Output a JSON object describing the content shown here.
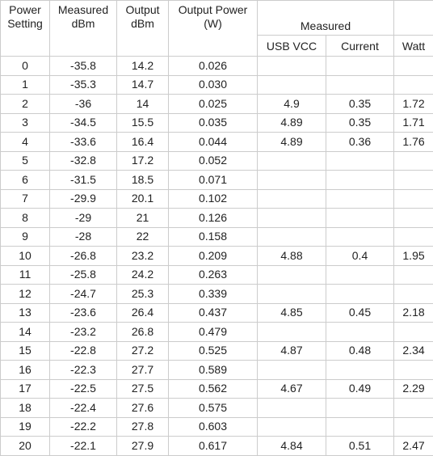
{
  "headers": {
    "power_setting": [
      "Power",
      "Setting"
    ],
    "measured_dbm": [
      "Measured",
      "dBm"
    ],
    "output_dbm": [
      "Output",
      "dBm"
    ],
    "output_power": [
      "Output Power",
      "(W)"
    ],
    "measured_group": "Measured",
    "usb_vcc": "USB VCC",
    "current": "Current",
    "watt": "Watt"
  },
  "rows": [
    {
      "setting": "0",
      "measured_dbm": "-35.8",
      "output_dbm": "14.2",
      "output_w": "0.026",
      "usb_vcc": "",
      "current": "",
      "watt": ""
    },
    {
      "setting": "1",
      "measured_dbm": "-35.3",
      "output_dbm": "14.7",
      "output_w": "0.030",
      "usb_vcc": "",
      "current": "",
      "watt": ""
    },
    {
      "setting": "2",
      "measured_dbm": "-36",
      "output_dbm": "14",
      "output_w": "0.025",
      "usb_vcc": "4.9",
      "current": "0.35",
      "watt": "1.72"
    },
    {
      "setting": "3",
      "measured_dbm": "-34.5",
      "output_dbm": "15.5",
      "output_w": "0.035",
      "usb_vcc": "4.89",
      "current": "0.35",
      "watt": "1.71"
    },
    {
      "setting": "4",
      "measured_dbm": "-33.6",
      "output_dbm": "16.4",
      "output_w": "0.044",
      "usb_vcc": "4.89",
      "current": "0.36",
      "watt": "1.76"
    },
    {
      "setting": "5",
      "measured_dbm": "-32.8",
      "output_dbm": "17.2",
      "output_w": "0.052",
      "usb_vcc": "",
      "current": "",
      "watt": ""
    },
    {
      "setting": "6",
      "measured_dbm": "-31.5",
      "output_dbm": "18.5",
      "output_w": "0.071",
      "usb_vcc": "",
      "current": "",
      "watt": ""
    },
    {
      "setting": "7",
      "measured_dbm": "-29.9",
      "output_dbm": "20.1",
      "output_w": "0.102",
      "usb_vcc": "",
      "current": "",
      "watt": ""
    },
    {
      "setting": "8",
      "measured_dbm": "-29",
      "output_dbm": "21",
      "output_w": "0.126",
      "usb_vcc": "",
      "current": "",
      "watt": ""
    },
    {
      "setting": "9",
      "measured_dbm": "-28",
      "output_dbm": "22",
      "output_w": "0.158",
      "usb_vcc": "",
      "current": "",
      "watt": ""
    },
    {
      "setting": "10",
      "measured_dbm": "-26.8",
      "output_dbm": "23.2",
      "output_w": "0.209",
      "usb_vcc": "4.88",
      "current": "0.4",
      "watt": "1.95"
    },
    {
      "setting": "11",
      "measured_dbm": "-25.8",
      "output_dbm": "24.2",
      "output_w": "0.263",
      "usb_vcc": "",
      "current": "",
      "watt": ""
    },
    {
      "setting": "12",
      "measured_dbm": "-24.7",
      "output_dbm": "25.3",
      "output_w": "0.339",
      "usb_vcc": "",
      "current": "",
      "watt": ""
    },
    {
      "setting": "13",
      "measured_dbm": "-23.6",
      "output_dbm": "26.4",
      "output_w": "0.437",
      "usb_vcc": "4.85",
      "current": "0.45",
      "watt": "2.18"
    },
    {
      "setting": "14",
      "measured_dbm": "-23.2",
      "output_dbm": "26.8",
      "output_w": "0.479",
      "usb_vcc": "",
      "current": "",
      "watt": ""
    },
    {
      "setting": "15",
      "measured_dbm": "-22.8",
      "output_dbm": "27.2",
      "output_w": "0.525",
      "usb_vcc": "4.87",
      "current": "0.48",
      "watt": "2.34"
    },
    {
      "setting": "16",
      "measured_dbm": "-22.3",
      "output_dbm": "27.7",
      "output_w": "0.589",
      "usb_vcc": "",
      "current": "",
      "watt": ""
    },
    {
      "setting": "17",
      "measured_dbm": "-22.5",
      "output_dbm": "27.5",
      "output_w": "0.562",
      "usb_vcc": "4.67",
      "current": "0.49",
      "watt": "2.29"
    },
    {
      "setting": "18",
      "measured_dbm": "-22.4",
      "output_dbm": "27.6",
      "output_w": "0.575",
      "usb_vcc": "",
      "current": "",
      "watt": ""
    },
    {
      "setting": "19",
      "measured_dbm": "-22.2",
      "output_dbm": "27.8",
      "output_w": "0.603",
      "usb_vcc": "",
      "current": "",
      "watt": ""
    },
    {
      "setting": "20",
      "measured_dbm": "-22.1",
      "output_dbm": "27.9",
      "output_w": "0.617",
      "usb_vcc": "4.84",
      "current": "0.51",
      "watt": "2.47"
    }
  ]
}
